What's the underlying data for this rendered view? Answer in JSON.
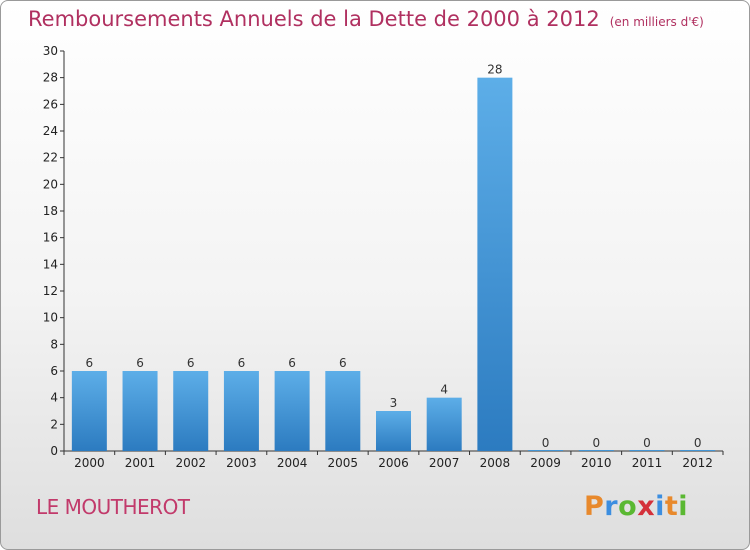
{
  "header": {
    "title": "Remboursements Annuels de la Dette de 2000 à 2012",
    "unit": "(en milliers d'€)"
  },
  "footer": {
    "commune": "LE MOUTHEROT",
    "logo_text": "Proxiti",
    "logo_colors": [
      "#e8892c",
      "#3c8ee0",
      "#5ab832",
      "#d4303a",
      "#3c8ee0",
      "#e8892c",
      "#5ab832"
    ]
  },
  "colors": {
    "bar_light": "#5daee8",
    "bar_dark": "#2c7bc0",
    "axis": "#333333"
  },
  "chart_data": {
    "type": "bar",
    "categories": [
      "2000",
      "2001",
      "2002",
      "2003",
      "2004",
      "2005",
      "2006",
      "2007",
      "2008",
      "2009",
      "2010",
      "2011",
      "2012"
    ],
    "values": [
      6,
      6,
      6,
      6,
      6,
      6,
      3,
      4,
      28,
      0,
      0,
      0,
      0
    ],
    "data_labels": [
      "6",
      "6",
      "6",
      "6",
      "6",
      "6",
      "3",
      "4",
      "28",
      "0",
      "0",
      "0",
      "0"
    ],
    "y_ticks": [
      0,
      2,
      4,
      6,
      8,
      10,
      12,
      14,
      16,
      18,
      20,
      22,
      24,
      26,
      28,
      30
    ],
    "ylim": [
      0,
      30
    ],
    "title": "Remboursements Annuels de la Dette de 2000 à 2012",
    "xlabel": "",
    "ylabel": "",
    "grid": false
  }
}
